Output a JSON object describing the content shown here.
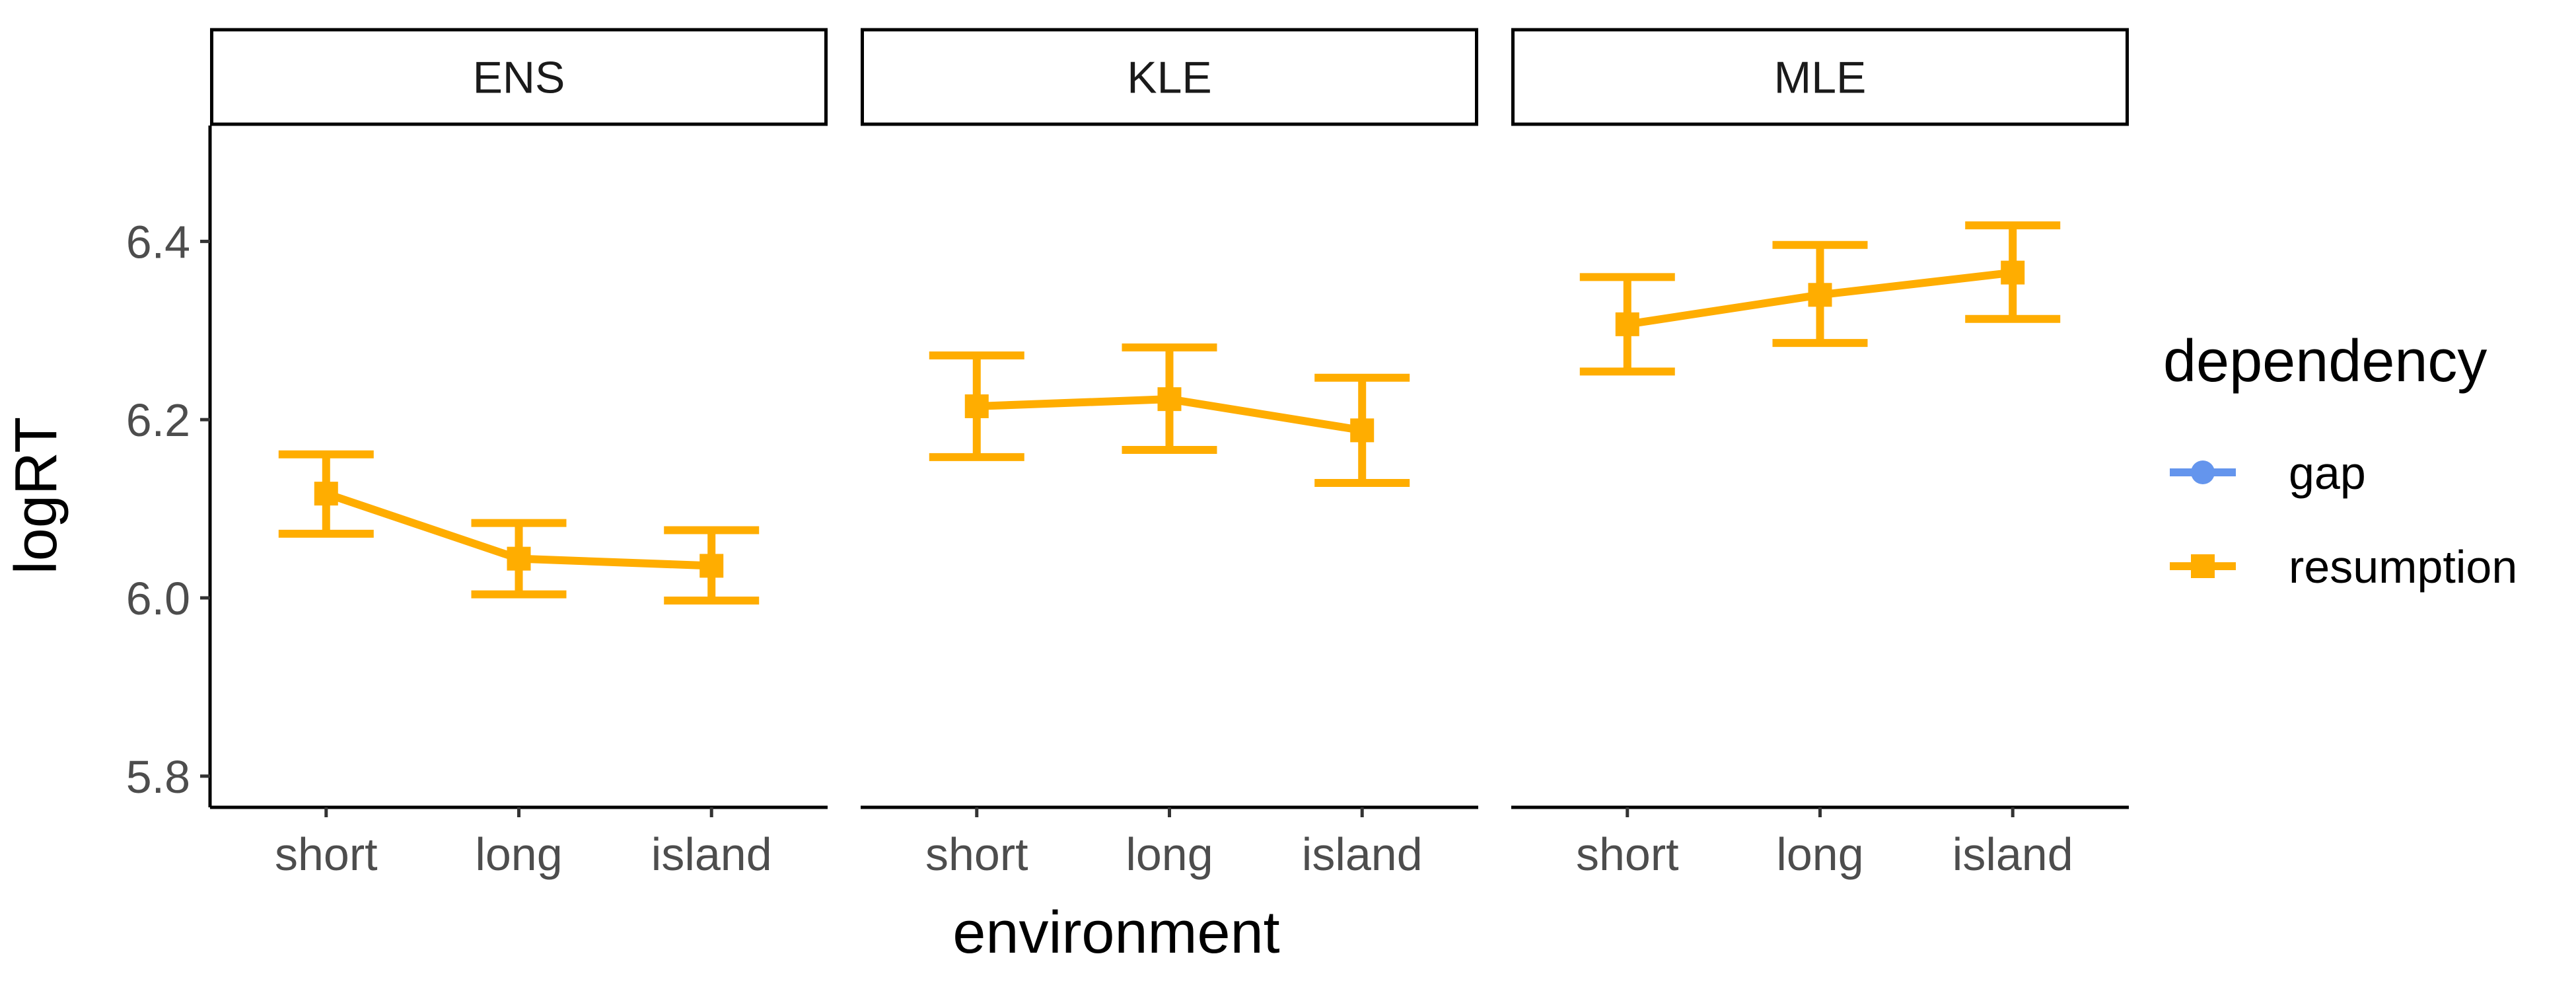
{
  "chart_data": {
    "type": "line",
    "facet_variable": "panel",
    "panels": [
      "ENS",
      "KLE",
      "MLE"
    ],
    "categories": [
      "short",
      "long",
      "island"
    ],
    "xlabel": "environment",
    "ylabel": "logRT",
    "ylim": [
      5.765,
      6.53
    ],
    "yticks": [
      "5.8",
      "6.0",
      "6.2",
      "6.4"
    ],
    "yticks_values": [
      5.8,
      6.0,
      6.2,
      6.4
    ],
    "legend": {
      "title": "dependency",
      "position": "right",
      "entries": [
        {
          "label": "gap",
          "color": "#6495ED",
          "shape": "circle"
        },
        {
          "label": "resumption",
          "color": "#FFAD00",
          "shape": "square"
        }
      ]
    },
    "series": [
      {
        "name": "resumption",
        "color": "#FFAD00",
        "panels": {
          "ENS": {
            "values": [
              6.117,
              6.044,
              6.036
            ],
            "lower": [
              6.072,
              6.004,
              5.997
            ],
            "upper": [
              6.161,
              6.084,
              6.076
            ]
          },
          "KLE": {
            "values": [
              6.215,
              6.223,
              6.188
            ],
            "lower": [
              6.158,
              6.166,
              6.129
            ],
            "upper": [
              6.272,
              6.281,
              6.247
            ]
          },
          "MLE": {
            "values": [
              6.307,
              6.34,
              6.365
            ],
            "lower": [
              6.254,
              6.286,
              6.313
            ],
            "upper": [
              6.36,
              6.396,
              6.418
            ]
          }
        }
      }
    ],
    "grid": false
  }
}
